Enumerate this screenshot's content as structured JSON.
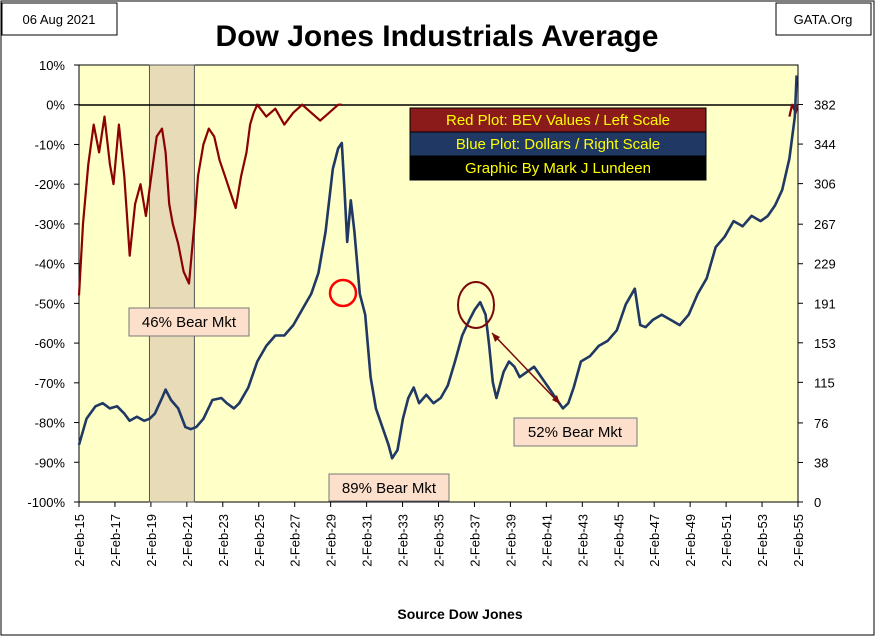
{
  "header": {
    "date_label": "06 Aug 2021",
    "title": "Dow Jones Industrials Average",
    "source_label": "GATA.Org"
  },
  "footer": {
    "source": "Source Dow Jones"
  },
  "legend": [
    {
      "text": "Red Plot:  BEV Values / Left Scale",
      "bg": "#8b1a1a"
    },
    {
      "text": "Blue Plot:  Dollars / Right Scale",
      "bg": "#1f3864"
    },
    {
      "text": "Graphic By Mark J Lundeen",
      "bg": "#000000"
    }
  ],
  "annotations": {
    "bear1": "46% Bear Mkt",
    "bear2": "89% Bear Mkt",
    "bear3": "52% Bear Mkt"
  },
  "colors": {
    "plot_bg": "#ffffc8",
    "red_series": "#8b0000",
    "blue_series": "#1f3864",
    "shade": "#e8dcb8",
    "annotation_box": "#fde0cc",
    "circle_red": "#ff0000",
    "circle_dark": "#7a0a0a"
  },
  "chart_data": {
    "type": "line",
    "title": "Dow Jones Industrials Average",
    "xlabel": "Source Dow Jones",
    "x_ticks": [
      "2-Feb-15",
      "2-Feb-17",
      "2-Feb-19",
      "2-Feb-21",
      "2-Feb-23",
      "2-Feb-25",
      "2-Feb-27",
      "2-Feb-29",
      "2-Feb-31",
      "2-Feb-33",
      "2-Feb-35",
      "2-Feb-37",
      "2-Feb-39",
      "2-Feb-41",
      "2-Feb-43",
      "2-Feb-45",
      "2-Feb-47",
      "2-Feb-49",
      "2-Feb-51",
      "2-Feb-53",
      "2-Feb-55"
    ],
    "left_axis": {
      "ticks": [
        "10%",
        "0%",
        "-10%",
        "-20%",
        "-30%",
        "-40%",
        "-50%",
        "-60%",
        "-70%",
        "-80%",
        "-90%",
        "-100%"
      ],
      "ylim": [
        -100,
        10
      ]
    },
    "right_axis": {
      "ticks": [
        "382",
        "344",
        "306",
        "267",
        "229",
        "191",
        "153",
        "115",
        "76",
        "38",
        "0"
      ],
      "ylim": [
        0,
        420
      ]
    },
    "shaded_region": {
      "x": [
        1919.0,
        1921.5
      ]
    },
    "series": [
      {
        "name": "Red Plot:  BEV Values / Left Scale",
        "axis": "left",
        "x": [
          1915.08,
          1915.3,
          1915.6,
          1915.9,
          1916.2,
          1916.5,
          1916.8,
          1917.0,
          1917.3,
          1917.6,
          1917.9,
          1918.2,
          1918.5,
          1918.8,
          1919.1,
          1919.4,
          1919.7,
          1919.9,
          1920.1,
          1920.3,
          1920.6,
          1920.9,
          1921.2,
          1921.5,
          1921.7,
          1922.0,
          1922.3,
          1922.6,
          1922.9,
          1923.2,
          1923.5,
          1923.8,
          1924.1,
          1924.4,
          1924.6,
          1924.8,
          1925.0,
          1925.5,
          1926.0,
          1926.5,
          1927.0,
          1927.5,
          1928.0,
          1928.5,
          1929.0,
          1929.5,
          1929.7
        ],
        "y": [
          -48,
          -30,
          -15,
          -5,
          -12,
          -3,
          -15,
          -20,
          -5,
          -18,
          -38,
          -25,
          -20,
          -28,
          -18,
          -8,
          -6,
          -12,
          -25,
          -30,
          -35,
          -42,
          -45,
          -30,
          -18,
          -10,
          -6,
          -8,
          -14,
          -18,
          -22,
          -26,
          -18,
          -12,
          -5,
          -2,
          0,
          -3,
          -1,
          -5,
          -2,
          0,
          -2,
          -4,
          -2,
          0,
          0
        ]
      },
      {
        "name": "Red Plot:  BEV Values / Left Scale (1954-55)",
        "axis": "left",
        "x": [
          1954.6,
          1954.75,
          1954.95,
          1955.05
        ],
        "y": [
          -3,
          0,
          -2,
          0
        ]
      },
      {
        "name": "Blue Plot:  Dollars / Right Scale",
        "axis": "right",
        "x": [
          1915.08,
          1915.5,
          1916.0,
          1916.4,
          1916.8,
          1917.2,
          1917.6,
          1917.9,
          1918.3,
          1918.7,
          1919.0,
          1919.3,
          1919.7,
          1919.9,
          1920.2,
          1920.6,
          1921.0,
          1921.3,
          1921.6,
          1922.0,
          1922.5,
          1923.0,
          1923.3,
          1923.7,
          1924.0,
          1924.5,
          1925.0,
          1925.5,
          1926.0,
          1926.5,
          1927.0,
          1927.5,
          1928.0,
          1928.4,
          1928.8,
          1929.2,
          1929.5,
          1929.7,
          1929.85,
          1930.0,
          1930.2,
          1930.4,
          1930.7,
          1931.0,
          1931.3,
          1931.6,
          1932.0,
          1932.3,
          1932.5,
          1932.8,
          1933.1,
          1933.4,
          1933.7,
          1934.0,
          1934.4,
          1934.8,
          1935.2,
          1935.6,
          1936.0,
          1936.4,
          1936.8,
          1937.1,
          1937.4,
          1937.7,
          1937.9,
          1938.1,
          1938.3,
          1938.7,
          1939.0,
          1939.3,
          1939.6,
          1940.0,
          1940.4,
          1940.8,
          1941.2,
          1941.6,
          1942.0,
          1942.3,
          1942.6,
          1943.0,
          1943.5,
          1944.0,
          1944.5,
          1945.0,
          1945.5,
          1946.0,
          1946.3,
          1946.6,
          1947.0,
          1947.5,
          1948.0,
          1948.5,
          1949.0,
          1949.5,
          1950.0,
          1950.5,
          1951.0,
          1951.5,
          1952.0,
          1952.5,
          1953.0,
          1953.4,
          1953.8,
          1954.2,
          1954.6,
          1954.9,
          1955.0
        ],
        "y": [
          55,
          80,
          92,
          95,
          90,
          92,
          85,
          78,
          82,
          78,
          80,
          85,
          100,
          108,
          98,
          90,
          72,
          70,
          72,
          80,
          98,
          100,
          95,
          90,
          95,
          110,
          135,
          150,
          160,
          160,
          170,
          185,
          200,
          220,
          260,
          320,
          340,
          345,
          300,
          250,
          290,
          260,
          200,
          180,
          120,
          90,
          70,
          55,
          42,
          50,
          80,
          100,
          110,
          95,
          103,
          95,
          100,
          112,
          135,
          160,
          175,
          185,
          192,
          180,
          150,
          115,
          100,
          125,
          135,
          130,
          120,
          125,
          130,
          120,
          110,
          100,
          90,
          95,
          110,
          135,
          140,
          150,
          155,
          165,
          190,
          205,
          170,
          168,
          175,
          180,
          175,
          170,
          180,
          200,
          215,
          245,
          255,
          270,
          265,
          275,
          270,
          275,
          285,
          300,
          330,
          370,
          410
        ]
      }
    ],
    "annotations": [
      "46% Bear Mkt",
      "89% Bear Mkt",
      "52% Bear Mkt"
    ]
  }
}
